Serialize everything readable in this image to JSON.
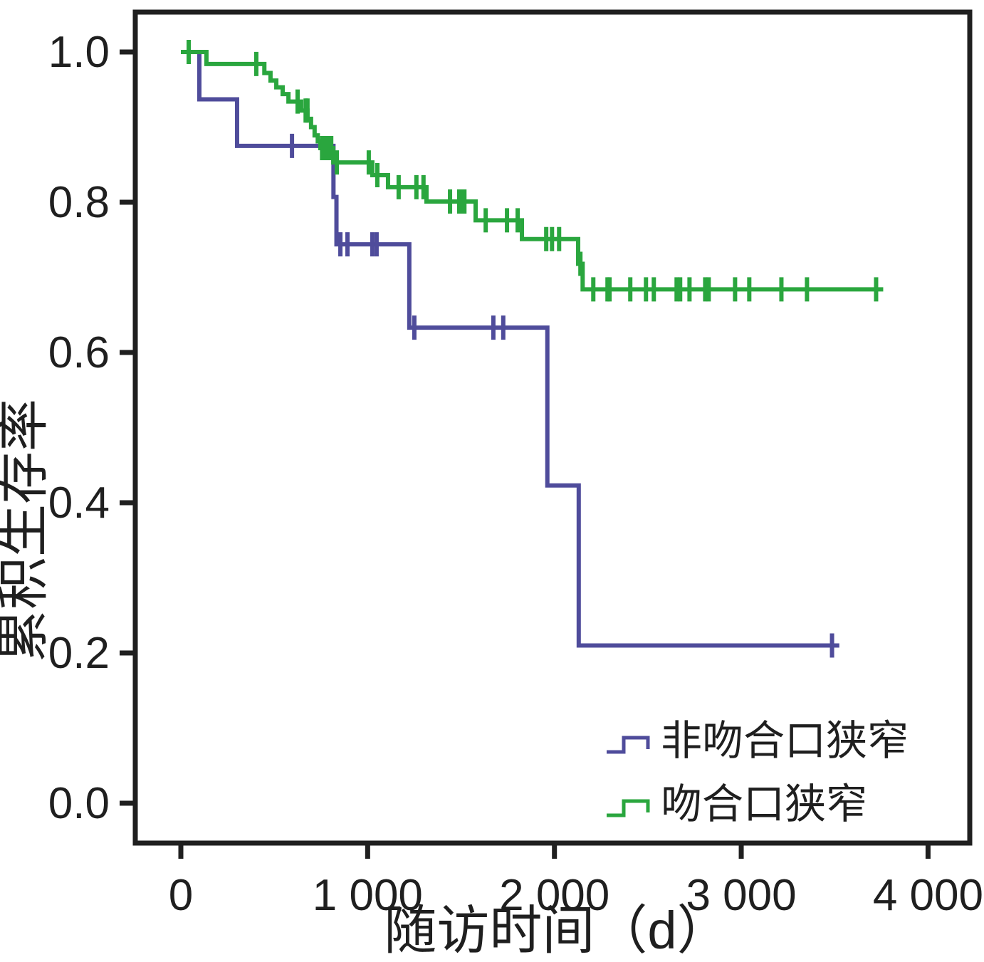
{
  "chart_data": {
    "type": "line",
    "subtype": "kaplan-meier-step-survival",
    "title": "",
    "xlabel": "随访时间（d）",
    "ylabel": "累积生存率",
    "grid": false,
    "legend_position": "bottom-right",
    "x_axis": {
      "range": [
        0,
        4000
      ],
      "ticks": [
        {
          "t": 0,
          "label": "0"
        },
        {
          "t": 1000,
          "label": "1 000"
        },
        {
          "t": 2000,
          "label": "2 000"
        },
        {
          "t": 3000,
          "label": "3 000"
        },
        {
          "t": 4000,
          "label": "4 000"
        }
      ]
    },
    "y_axis": {
      "range": [
        0.0,
        1.0
      ],
      "ticks": [
        {
          "v": 1.0,
          "label": "1.0"
        },
        {
          "v": 0.8,
          "label": "0.8"
        },
        {
          "v": 0.6,
          "label": "0.6"
        },
        {
          "v": 0.4,
          "label": "0.4"
        },
        {
          "v": 0.2,
          "label": "0.2"
        },
        {
          "v": 0.0,
          "label": "0.0"
        }
      ]
    },
    "series": [
      {
        "name": "非吻合口狭窄",
        "color": "#4f4c9b",
        "end_time": 3525,
        "steps": [
          [
            0,
            1.0
          ],
          [
            99,
            0.937
          ],
          [
            301,
            0.875
          ],
          [
            817,
            0.807
          ],
          [
            833,
            0.744
          ],
          [
            1223,
            0.633
          ],
          [
            1962,
            0.423
          ],
          [
            2130,
            0.21
          ]
        ],
        "censors": [
          [
            595,
            0.875
          ],
          [
            854,
            0.744
          ],
          [
            892,
            0.744
          ],
          [
            1025,
            0.744
          ],
          [
            1048,
            0.744
          ],
          [
            1250,
            0.633
          ],
          [
            1673,
            0.633
          ],
          [
            1726,
            0.633
          ],
          [
            3486,
            0.21
          ]
        ]
      },
      {
        "name": "吻合口狭窄",
        "color": "#2aa63e",
        "end_time": 3760,
        "steps": [
          [
            0,
            1.0
          ],
          [
            137,
            0.984
          ],
          [
            447,
            0.972
          ],
          [
            480,
            0.962
          ],
          [
            511,
            0.953
          ],
          [
            545,
            0.944
          ],
          [
            576,
            0.934
          ],
          [
            644,
            0.922
          ],
          [
            678,
            0.911
          ],
          [
            697,
            0.9
          ],
          [
            716,
            0.889
          ],
          [
            733,
            0.881
          ],
          [
            747,
            0.872
          ],
          [
            816,
            0.853
          ],
          [
            1025,
            0.836
          ],
          [
            1109,
            0.82
          ],
          [
            1315,
            0.801
          ],
          [
            1578,
            0.776
          ],
          [
            1826,
            0.751
          ],
          [
            2127,
            0.718
          ],
          [
            2151,
            0.684
          ]
        ],
        "censors": [
          [
            42,
            1.0
          ],
          [
            404,
            0.984
          ],
          [
            625,
            0.934
          ],
          [
            668,
            0.922
          ],
          [
            678,
            0.922
          ],
          [
            756,
            0.872
          ],
          [
            773,
            0.872
          ],
          [
            789,
            0.872
          ],
          [
            805,
            0.872
          ],
          [
            835,
            0.853
          ],
          [
            1006,
            0.853
          ],
          [
            1052,
            0.836
          ],
          [
            1166,
            0.82
          ],
          [
            1261,
            0.82
          ],
          [
            1299,
            0.82
          ],
          [
            1441,
            0.801
          ],
          [
            1490,
            0.801
          ],
          [
            1504,
            0.801
          ],
          [
            1518,
            0.801
          ],
          [
            1632,
            0.776
          ],
          [
            1746,
            0.776
          ],
          [
            1803,
            0.776
          ],
          [
            1956,
            0.751
          ],
          [
            1987,
            0.751
          ],
          [
            2025,
            0.751
          ],
          [
            2139,
            0.718
          ],
          [
            2208,
            0.684
          ],
          [
            2284,
            0.684
          ],
          [
            2295,
            0.684
          ],
          [
            2406,
            0.684
          ],
          [
            2490,
            0.684
          ],
          [
            2532,
            0.684
          ],
          [
            2654,
            0.684
          ],
          [
            2673,
            0.684
          ],
          [
            2723,
            0.684
          ],
          [
            2807,
            0.684
          ],
          [
            2826,
            0.684
          ],
          [
            2967,
            0.684
          ],
          [
            3043,
            0.684
          ],
          [
            3215,
            0.684
          ],
          [
            3352,
            0.684
          ],
          [
            3722,
            0.684
          ]
        ]
      }
    ]
  }
}
